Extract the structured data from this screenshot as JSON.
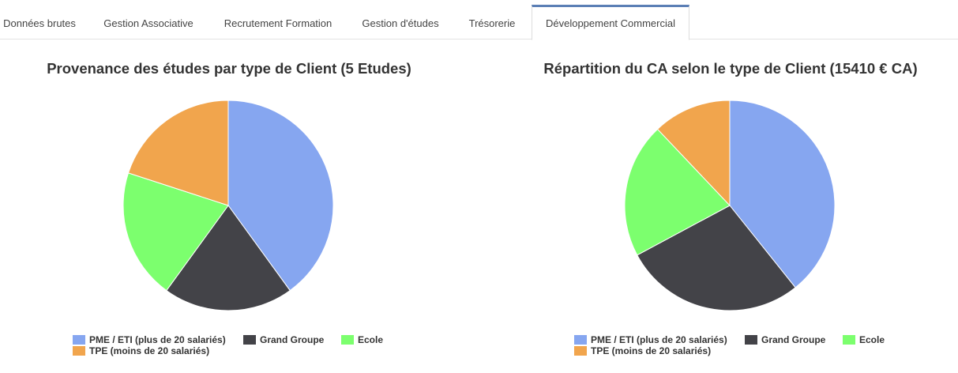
{
  "tabs": [
    {
      "label": "Données brutes"
    },
    {
      "label": "Gestion Associative"
    },
    {
      "label": "Recrutement Formation"
    },
    {
      "label": "Gestion d'études"
    },
    {
      "label": "Trésorerie"
    },
    {
      "label": "Développement Commercial",
      "active": true
    }
  ],
  "chart_data": [
    {
      "type": "pie",
      "title": "Provenance des études par type de Client (5 Etudes)",
      "categories": [
        "PME / ETI (plus de 20 salariés)",
        "Grand Groupe",
        "Ecole",
        "TPE (moins de 20 salariés)"
      ],
      "values": [
        2,
        1,
        1,
        1
      ],
      "colors": [
        "#86a6f0",
        "#434348",
        "#7cff6e",
        "#f1a54d"
      ],
      "legend": "bottom"
    },
    {
      "type": "pie",
      "title": "Répartition du CA selon le type de Client (15410 € CA)",
      "categories": [
        "PME / ETI (plus de 20 salariés)",
        "Grand Groupe",
        "Ecole",
        "TPE (moins de 20 salariés)"
      ],
      "values": [
        6050,
        4300,
        3200,
        1860
      ],
      "colors": [
        "#86a6f0",
        "#434348",
        "#7cff6e",
        "#f1a54d"
      ],
      "legend": "bottom"
    }
  ]
}
